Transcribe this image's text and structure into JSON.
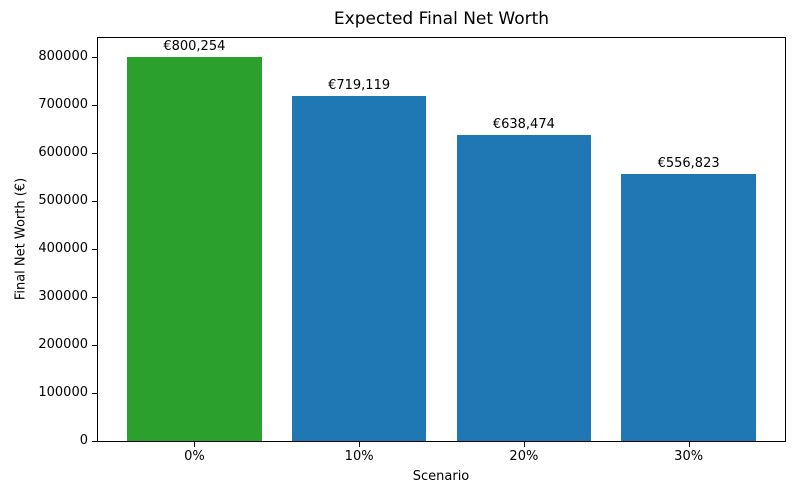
{
  "figure": {
    "background": "#ffffff",
    "text_color": "#000000"
  },
  "chart_data": {
    "type": "bar",
    "title": "Expected Final Net Worth",
    "xlabel": "Scenario",
    "ylabel": "Final Net Worth (€)",
    "categories": [
      "0%",
      "10%",
      "20%",
      "30%"
    ],
    "values": [
      800254,
      719119,
      638474,
      556823
    ],
    "bar_labels": [
      "€800,254",
      "€719,119",
      "€638,474",
      "€556,823"
    ],
    "bar_colors": [
      "#2ca02c",
      "#1f77b4",
      "#1f77b4",
      "#1f77b4"
    ],
    "highlight_color": "#2ca02c",
    "default_bar_color": "#1f77b4",
    "ylim": [
      0,
      840267
    ],
    "yticks": [
      0,
      100000,
      200000,
      300000,
      400000,
      500000,
      600000,
      700000,
      800000
    ],
    "grid": false,
    "legend_position": "none"
  }
}
